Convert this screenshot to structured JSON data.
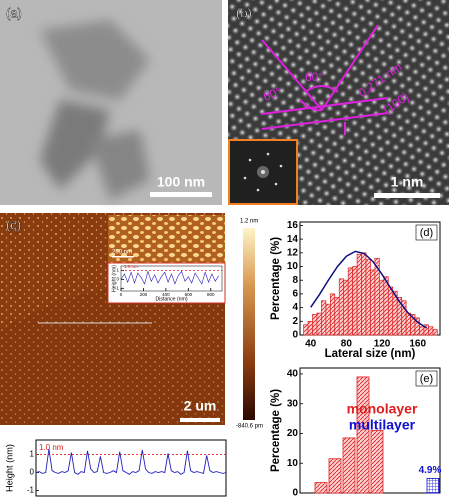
{
  "panels": {
    "a": {
      "label": "(a)",
      "scale_bar": "100 nm"
    },
    "b": {
      "label": "(b)",
      "angles": [
        "60°",
        "60°"
      ],
      "spacing": "0.271 nm",
      "plane": "(100)",
      "scale_bar": "1 nm"
    },
    "c": {
      "label": "(c)",
      "inset_scale_bar": "200 nm",
      "colorbar_max": "1.2 nm",
      "colorbar_min": "-840.6 pm",
      "scale_bar": "2 um"
    }
  },
  "chart_data": [
    {
      "type": "line",
      "ylabel": "Height (nm)",
      "annotation": "1.0 nm",
      "ref_line": 1.0,
      "x": [
        0,
        1,
        2,
        3,
        4,
        5,
        6,
        7,
        8,
        9,
        10,
        11,
        12,
        13,
        14,
        15,
        16,
        17,
        18,
        19,
        20,
        21,
        22,
        23,
        24,
        25,
        26,
        27,
        28,
        29,
        30,
        31,
        32,
        33,
        34,
        35,
        36,
        37,
        38,
        39,
        40,
        41,
        42,
        43,
        44,
        45,
        46,
        47,
        48,
        49,
        50,
        51,
        52,
        53,
        54,
        55,
        56,
        57,
        58,
        59
      ],
      "values": [
        0,
        0.05,
        -0.05,
        0,
        1.3,
        0.1,
        0,
        -0.05,
        0.05,
        0,
        0.1,
        1.1,
        0,
        -0.1,
        0.05,
        0,
        1.2,
        0.2,
        0,
        0.05,
        0.9,
        0,
        -0.05,
        0,
        0.1,
        0,
        1.15,
        0.1,
        0,
        -0.1,
        0.05,
        0,
        0.1,
        1.25,
        0.2,
        0,
        -0.05,
        0.05,
        0,
        0.05,
        0,
        1.05,
        0.1,
        0,
        0.05,
        -0.1,
        0,
        1.2,
        0.1,
        0,
        0.05,
        0,
        -0.05,
        0.95,
        0.1,
        0,
        0.05,
        0,
        -0.05,
        0
      ],
      "color": "#2020c0",
      "xlim": [
        0,
        59
      ],
      "ylim": [
        -1.3,
        1.8
      ],
      "yticks": [
        -1,
        0,
        1
      ]
    },
    {
      "type": "line",
      "xlabel": "Distance (nm)",
      "ylabel": "Height (nm)",
      "annotation": "1.0 nm",
      "ref_line": 1.0,
      "x": [
        0,
        30,
        60,
        90,
        120,
        150,
        180,
        210,
        240,
        270,
        300,
        330,
        360,
        390,
        420,
        450,
        480,
        510,
        540,
        570,
        600,
        630,
        660,
        690,
        720,
        750,
        780,
        810,
        840,
        870
      ],
      "values": [
        0,
        0.6,
        -0.3,
        0.8,
        -0.4,
        0.7,
        0.2,
        -0.5,
        0.9,
        -0.2,
        0.5,
        -0.4,
        0.3,
        0.8,
        -0.3,
        0.6,
        -0.5,
        0.4,
        0.9,
        -0.2,
        0.3,
        -0.4,
        0.7,
        0.1,
        -0.5,
        0.8,
        -0.3,
        0.6,
        -0.2,
        0.4
      ],
      "color": "#2020c0",
      "xlim": [
        0,
        900
      ],
      "ylim": [
        -1.3,
        1.5
      ],
      "xticks": [
        0,
        200,
        400,
        600,
        800
      ],
      "yticks": [
        -1,
        0,
        1
      ]
    },
    {
      "type": "histogram",
      "panel_label": "(d)",
      "xlabel": "Lateral size (nm)",
      "ylabel": "Percentage (%)",
      "bins": [
        32,
        37,
        42,
        47,
        52,
        57,
        62,
        67,
        72,
        77,
        82,
        87,
        92,
        97,
        102,
        107,
        112,
        117,
        122,
        127,
        132,
        137,
        142,
        147,
        152,
        157,
        162,
        167,
        172,
        177,
        182
      ],
      "values": [
        1.5,
        2,
        3,
        3.2,
        5,
        4.5,
        6,
        5.5,
        8.2,
        8,
        9.8,
        10,
        11.8,
        12,
        11,
        9.5,
        11.2,
        8,
        8.5,
        7,
        6.4,
        5.5,
        5,
        3.2,
        3,
        2.5,
        1.2,
        1.5,
        1.2,
        0.8
      ],
      "color": "#e02020",
      "fit": {
        "color": "#101080",
        "x": [
          40,
          50,
          60,
          70,
          80,
          90,
          100,
          110,
          120,
          130,
          140,
          150,
          160,
          170
        ],
        "y": [
          4.05,
          5.94,
          8.03,
          10.0,
          11.5,
          12.2,
          11.9,
          10.7,
          8.86,
          6.77,
          4.77,
          3.09,
          1.85,
          1.02
        ]
      },
      "xlim": [
        28,
        185
      ],
      "ylim": [
        0,
        16.5
      ],
      "xticks": [
        40,
        80,
        120,
        160
      ],
      "yticks": [
        0,
        2,
        4,
        6,
        8,
        10,
        12,
        14,
        16
      ]
    },
    {
      "type": "bar",
      "panel_label": "(e)",
      "ylabel": "Percentage (%)",
      "categories": [
        null,
        null,
        null,
        null,
        null,
        null,
        null,
        null,
        null,
        null
      ],
      "series": [
        {
          "name": "monolayer",
          "color": "#e02020",
          "values": [
            null,
            3.5,
            11.5,
            18.5,
            39,
            21,
            null,
            null,
            null,
            null
          ]
        },
        {
          "name": "multilayer",
          "color": "#1010d0",
          "values": [
            null,
            null,
            null,
            null,
            null,
            null,
            null,
            null,
            null,
            4.9
          ],
          "value_labels": [
            null,
            null,
            null,
            null,
            null,
            null,
            null,
            null,
            null,
            "4.9%"
          ]
        }
      ],
      "ylim": [
        0,
        42
      ],
      "yticks": [
        0,
        10,
        20,
        30,
        40
      ]
    }
  ]
}
